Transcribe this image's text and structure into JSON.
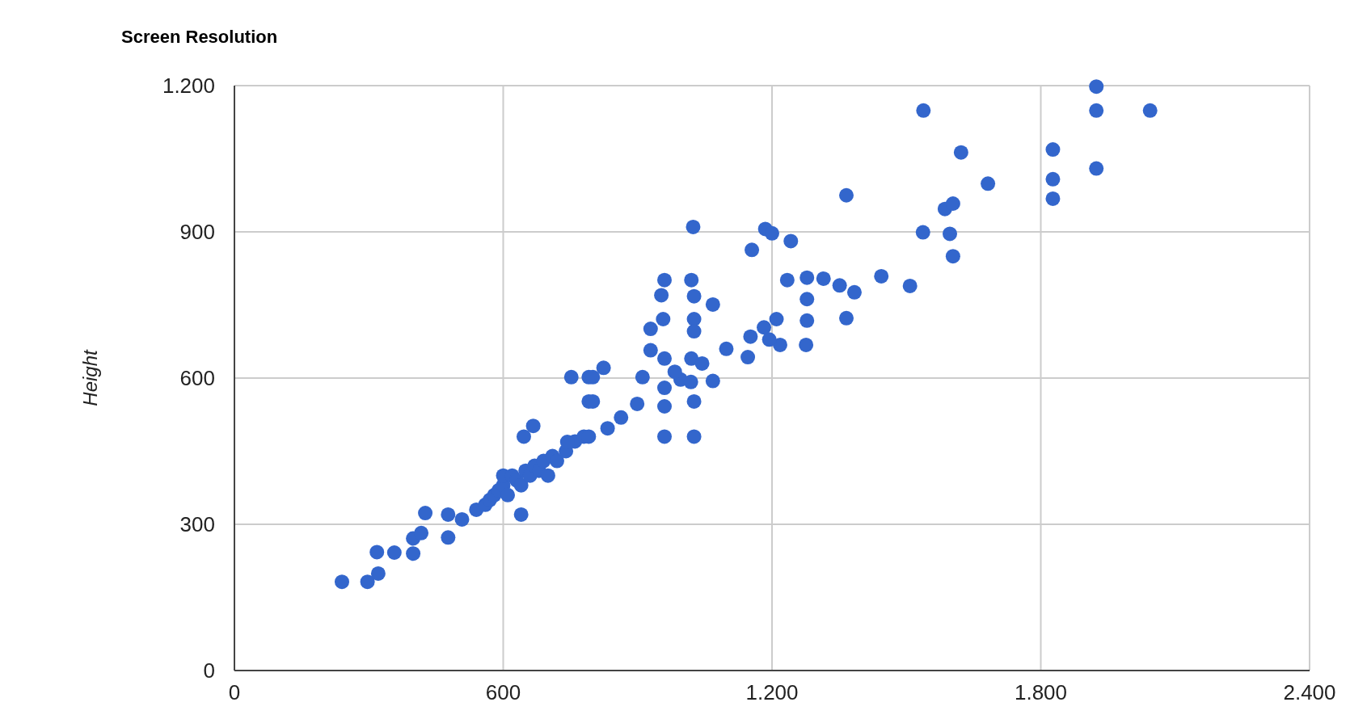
{
  "chart_data": {
    "type": "scatter",
    "title": "Screen Resolution",
    "ylabel": "Height",
    "x": [
      240,
      297,
      321,
      318,
      357,
      399,
      399,
      417,
      426,
      477,
      477,
      508,
      540,
      560,
      570,
      580,
      590,
      600,
      600,
      610,
      620,
      630,
      640,
      640,
      650,
      660,
      670,
      680,
      690,
      700,
      710,
      720,
      740,
      760,
      780,
      646,
      667,
      743,
      791,
      791,
      791,
      752,
      800,
      824,
      800,
      833,
      863,
      899,
      911,
      929,
      960,
      929,
      957,
      960,
      1020,
      953,
      1026,
      1068,
      1026,
      1026,
      1020,
      1044,
      1068,
      960,
      960,
      1026,
      996,
      1019,
      983,
      960,
      1026,
      1098,
      1146,
      1152,
      1182,
      1210,
      1218,
      1194,
      1234,
      1278,
      1315,
      1351,
      1384,
      1366,
      1278,
      1278,
      1276,
      1444,
      1508,
      1024,
      1185,
      1200,
      1242,
      1155,
      1366,
      1537,
      1597,
      1604,
      1586,
      1604,
      1622,
      1682,
      1827,
      1827,
      1827,
      1924,
      1538,
      1924,
      1924,
      2044
    ],
    "series": [
      {
        "color": "#3366cc",
        "values": [
          182,
          182,
          199,
          243,
          242,
          240,
          271,
          282,
          323,
          273,
          320,
          310,
          330,
          340,
          350,
          360,
          370,
          380,
          400,
          360,
          400,
          390,
          380,
          320,
          410,
          400,
          420,
          410,
          430,
          400,
          440,
          430,
          450,
          470,
          480,
          480,
          502,
          469,
          480,
          552,
          602,
          602,
          602,
          621,
          552,
          497,
          519,
          547,
          602,
          657,
          640,
          701,
          721,
          801,
          801,
          770,
          768,
          751,
          721,
          696,
          640,
          630,
          594,
          580,
          542,
          552,
          597,
          592,
          613,
          480,
          480,
          660,
          643,
          685,
          704,
          721,
          668,
          679,
          801,
          806,
          804,
          790,
          776,
          723,
          762,
          718,
          668,
          809,
          789,
          910,
          906,
          897,
          881,
          863,
          975,
          899,
          896,
          850,
          947,
          958,
          1063,
          999,
          1069,
          1008,
          968,
          1030,
          1149,
          1198,
          1149,
          1149
        ]
      }
    ],
    "xlim": [
      0,
      2400
    ],
    "ylim": [
      0,
      1200
    ],
    "xticks": [
      0,
      {
        "value": 600,
        "label": "600"
      },
      {
        "value": 1200,
        "label": "1.200"
      },
      {
        "value": 1800,
        "label": "1.800"
      },
      {
        "value": 2400,
        "label": "2.400"
      }
    ],
    "yticks": [
      0,
      300,
      600,
      900,
      {
        "value": 1200,
        "label": "1.200"
      }
    ],
    "grid": true,
    "marker": "circle"
  }
}
